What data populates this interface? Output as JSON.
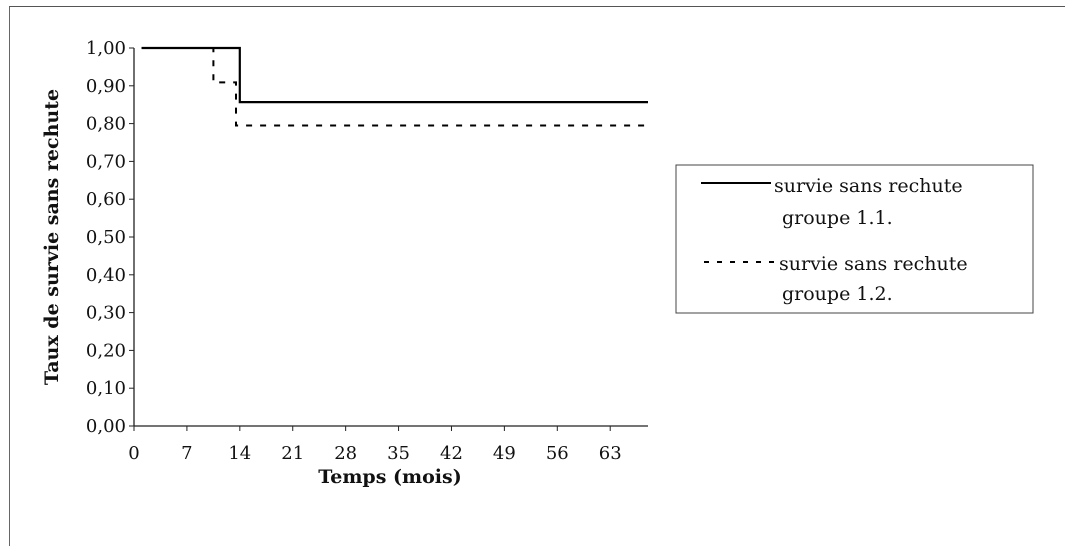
{
  "chart_data": {
    "type": "line",
    "step": true,
    "xlabel": "Temps (mois)",
    "ylabel": "Taux de survie sans rechute",
    "xlim": [
      0,
      68
    ],
    "ylim": [
      0,
      1
    ],
    "x_ticks": [
      "0",
      "7",
      "14",
      "21",
      "28",
      "35",
      "42",
      "49",
      "56",
      "63"
    ],
    "y_ticks": [
      "0,00",
      "0,10",
      "0,20",
      "0,30",
      "0,40",
      "0,50",
      "0,60",
      "0,70",
      "0,80",
      "0,90",
      "1,00"
    ],
    "grid": false,
    "legend_position": "right",
    "series": [
      {
        "name": "survie sans rechute groupe 1.1.",
        "legend_lines": [
          "survie sans rechute",
          "groupe 1.1."
        ],
        "line_style": "solid",
        "color": "#000000",
        "points": [
          [
            1,
            1.0
          ],
          [
            14,
            1.0
          ],
          [
            14,
            0.857
          ],
          [
            68,
            0.857
          ]
        ]
      },
      {
        "name": "survie sans rechute groupe 1.2.",
        "legend_lines": [
          "survie sans rechute",
          "groupe 1.2."
        ],
        "line_style": "dashed",
        "color": "#000000",
        "points": [
          [
            1,
            1.0
          ],
          [
            10.5,
            1.0
          ],
          [
            10.5,
            0.909
          ],
          [
            13.5,
            0.909
          ],
          [
            13.5,
            0.795
          ],
          [
            68,
            0.795
          ]
        ]
      }
    ]
  }
}
